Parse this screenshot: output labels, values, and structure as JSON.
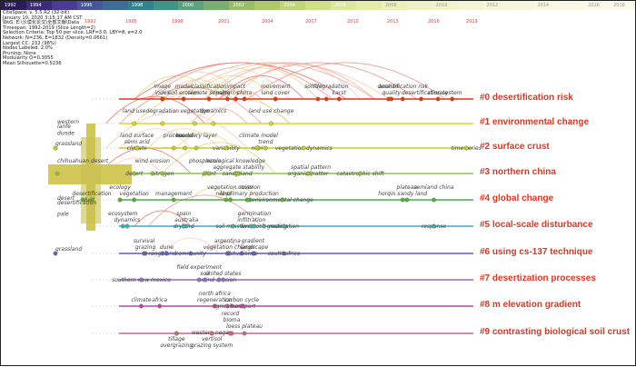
{
  "timebar": [
    {
      "label": "1992",
      "color": "#2b1b5a"
    },
    {
      "label": "1994",
      "color": "#3e2a7a"
    },
    {
      "label": "",
      "color": "#4a3b95"
    },
    {
      "label": "1996",
      "color": "#45569e"
    },
    {
      "label": "",
      "color": "#3c6c9a"
    },
    {
      "label": "1998",
      "color": "#2f8290"
    },
    {
      "label": "",
      "color": "#3d9487"
    },
    {
      "label": "2000",
      "color": "#5aa37d"
    },
    {
      "label": "",
      "color": "#79b071"
    },
    {
      "label": "2002",
      "color": "#98bd66"
    },
    {
      "label": "",
      "color": "#aec96b"
    },
    {
      "label": "2004",
      "color": "#bfd57a"
    },
    {
      "label": "",
      "color": "#cfe08a"
    },
    {
      "label": "2006",
      "color": "#dbe79a"
    },
    {
      "label": "",
      "color": "#e5ecaa"
    },
    {
      "label": "2008",
      "color": "#ecf0b8"
    },
    {
      "label": "",
      "color": "#f0f2c4"
    },
    {
      "label": "2010",
      "color": "#f3f3cc"
    },
    {
      "label": "",
      "color": "#f5f4d2"
    },
    {
      "label": "2012",
      "color": "#f6f5d8"
    },
    {
      "label": "",
      "color": "#f7f6dc"
    },
    {
      "label": "2014",
      "color": "#f8f7e0"
    },
    {
      "label": "",
      "color": "#f9f8e4"
    },
    {
      "label": "2016",
      "color": "#faf9e7"
    },
    {
      "label": "2018",
      "color": "#fbfaea"
    }
  ],
  "info_lines": [
    "CiteSpace, v. 5.5.R2 (32-bit)",
    "January 10, 2020 3:15:17 AM CST",
    "WoS: E:\\沙漠化论文\\全部文献\\Data",
    "Timespan: 1992-2019 (Slice Length=2)",
    "Selection Criteria: Top 50 per slice, LRF=3.0, LBY=8, e=2.0",
    "Network: N=236, E=1832 (Density=0.0661)",
    "Largest CC: 232 (98%)",
    "Nodes Labeled: 2.0%",
    "Pruning: None",
    "Modularity Q=0.3055",
    "Mean Silhouette=0.5236"
  ],
  "years": [
    "1992",
    "1995",
    "1998",
    "2001",
    "2004",
    "2007",
    "2010",
    "2013",
    "2016",
    "2019"
  ],
  "clusters": [
    {
      "label": "#0 desertification risk",
      "color": "#e33322"
    },
    {
      "label": "#1 environmental change",
      "color": "#d8d827"
    },
    {
      "label": "#2 surface crust",
      "color": "#c8c830"
    },
    {
      "label": "#3 northern china",
      "color": "#8bc34a"
    },
    {
      "label": "#4 global change",
      "color": "#4caf50"
    },
    {
      "label": "#5 local-scale disturbance",
      "color": "#3aaad0"
    },
    {
      "label": "#6 using cs-137 technique",
      "color": "#5b5bd6"
    },
    {
      "label": "#7 desertization processes",
      "color": "#8b6bd0"
    },
    {
      "label": "#8 m elevation gradient",
      "color": "#c040b0"
    },
    {
      "label": "#9 contrasting biological soil crust",
      "color": "#d06090"
    }
  ],
  "keywords": [
    {
      "t": "image",
      "c": 0,
      "yr": 1997,
      "r": 0
    },
    {
      "t": "index",
      "c": 0,
      "yr": 1997,
      "r": 1
    },
    {
      "t": "model",
      "c": 0,
      "yr": 1998.5,
      "r": 0
    },
    {
      "t": "classification",
      "c": 0,
      "yr": 2000.3,
      "r": 0
    },
    {
      "t": "impact",
      "c": 0,
      "yr": 2002.2,
      "r": 0
    },
    {
      "t": "soil erosion",
      "c": 0,
      "yr": 1998.5,
      "r": 1
    },
    {
      "t": "remote sensing",
      "c": 0,
      "yr": 2000.3,
      "r": 1
    },
    {
      "t": "patterns",
      "c": 0,
      "yr": 2001.6,
      "r": 1
    },
    {
      "t": "china",
      "c": 0,
      "yr": 2002.8,
      "r": 1
    },
    {
      "t": "movement",
      "c": 0,
      "yr": 2005.0,
      "r": 0
    },
    {
      "t": "land cover",
      "c": 0,
      "yr": 2005.0,
      "r": 1
    },
    {
      "t": "fire",
      "c": 0,
      "yr": 2008.0,
      "r": 0
    },
    {
      "t": "soil degradation",
      "c": 0,
      "yr": 2008.6,
      "r": 0
    },
    {
      "t": "karst",
      "c": 0,
      "yr": 2009.5,
      "r": 1
    },
    {
      "t": "aeolian",
      "c": 0,
      "yr": 2013.0,
      "r": 0
    },
    {
      "t": "desertification risk",
      "c": 0,
      "yr": 2014.0,
      "r": 0
    },
    {
      "t": "quality",
      "c": 0,
      "yr": 2013.2,
      "r": 1
    },
    {
      "t": "desertification",
      "c": 0,
      "yr": 2015.3,
      "r": 1
    },
    {
      "t": "climate",
      "c": 0,
      "yr": 2016.5,
      "r": 1
    },
    {
      "t": "system",
      "c": 0,
      "yr": 2017.5,
      "r": 1
    },
    {
      "t": "land use",
      "c": 1,
      "yr": 1995.0,
      "r": 0
    },
    {
      "t": "degradation",
      "c": 1,
      "yr": 1997.0,
      "r": 0
    },
    {
      "t": "vegetation",
      "c": 1,
      "yr": 1999.3,
      "r": 0
    },
    {
      "t": "dynamics",
      "c": 1,
      "yr": 2000.6,
      "r": 0
    },
    {
      "t": "land use change",
      "c": 1,
      "yr": 2004.7,
      "r": 0
    },
    {
      "t": "grassland",
      "c": 2,
      "yr": 1992,
      "r": -1
    },
    {
      "t": "land surface",
      "c": 2,
      "yr": 1995.2,
      "r": 0
    },
    {
      "t": "semi arid",
      "c": 2,
      "yr": 1995.2,
      "r": 1
    },
    {
      "t": "climate",
      "c": 2,
      "yr": 1995.2,
      "r": 2
    },
    {
      "t": "process",
      "c": 2,
      "yr": 1997.8,
      "r": 0
    },
    {
      "t": "model",
      "c": 2,
      "yr": 1998.6,
      "r": 0
    },
    {
      "t": "boundary layer",
      "c": 2,
      "yr": 1999.4,
      "r": 0
    },
    {
      "t": "climate model",
      "c": 2,
      "yr": 2003.8,
      "r": 0
    },
    {
      "t": "trend",
      "c": 2,
      "yr": 2004.3,
      "r": 1
    },
    {
      "t": "ndvi",
      "c": 2,
      "yr": 2003.7,
      "r": 2
    },
    {
      "t": "variability",
      "c": 2,
      "yr": 2001.5,
      "r": 2
    },
    {
      "t": "vegetation dynamics",
      "c": 2,
      "yr": 2007.0,
      "r": 2
    },
    {
      "t": "time series",
      "c": 2,
      "yr": 2018.5,
      "r": 2
    },
    {
      "t": "wind erosion",
      "c": 3,
      "yr": 1996.3,
      "r": 0
    },
    {
      "t": "phosphorus",
      "c": 3,
      "yr": 2000.0,
      "r": 0
    },
    {
      "t": "ecological knowledge",
      "c": 3,
      "yr": 2002.2,
      "r": 0
    },
    {
      "t": "aggregate stability",
      "c": 3,
      "yr": 2002.4,
      "r": 1
    },
    {
      "t": "spatial pattern",
      "c": 3,
      "yr": 2007.5,
      "r": 1
    },
    {
      "t": "organic matter",
      "c": 3,
      "yr": 2007.3,
      "r": 2
    },
    {
      "t": "catastrophic shift",
      "c": 3,
      "yr": 2011.0,
      "r": 2
    },
    {
      "t": "chihuahuan desert",
      "c": 3,
      "yr": 1992,
      "r": -1
    },
    {
      "t": "desert",
      "c": 3,
      "yr": 1995.0,
      "r": 2
    },
    {
      "t": "nitrogen",
      "c": 3,
      "yr": 1997.0,
      "r": 2
    },
    {
      "t": "plant",
      "c": 3,
      "yr": 2000.3,
      "r": 2
    },
    {
      "t": "sandy land",
      "c": 3,
      "yr": 2002.3,
      "r": 2
    },
    {
      "t": "vegetation cover",
      "c": 4,
      "yr": 2001.8,
      "r": 0
    },
    {
      "t": "mission",
      "c": 4,
      "yr": 2003.2,
      "r": 0
    },
    {
      "t": "land",
      "c": 4,
      "yr": 2001.5,
      "r": 1
    },
    {
      "t": "net primary production",
      "c": 4,
      "yr": 2003.0,
      "r": 1
    },
    {
      "t": "environmental change",
      "c": 4,
      "yr": 2005.5,
      "r": 2
    },
    {
      "t": "plateau",
      "c": 4,
      "yr": 2014.3,
      "r": 0
    },
    {
      "t": "semiarid china",
      "c": 4,
      "yr": 2016.2,
      "r": 0
    },
    {
      "t": "horqin sandy land",
      "c": 4,
      "yr": 2014.0,
      "r": 1
    },
    {
      "t": "ecology",
      "c": 4,
      "yr": 1994.0,
      "r": 0
    },
    {
      "t": "vegetation",
      "c": 4,
      "yr": 1995.0,
      "r": 1
    },
    {
      "t": "management",
      "c": 4,
      "yr": 1997.8,
      "r": 1
    },
    {
      "t": "desertification",
      "c": 4,
      "yr": 1992,
      "r": 1
    },
    {
      "t": "dust",
      "c": 4,
      "yr": 1992,
      "r": -1
    },
    {
      "t": "spain",
      "c": 5,
      "yr": 1998.5,
      "r": 0
    },
    {
      "t": "australia",
      "c": 5,
      "yr": 1998.7,
      "r": 1
    },
    {
      "t": "germination",
      "c": 5,
      "yr": 2003.5,
      "r": 0
    },
    {
      "t": "infiltration",
      "c": 5,
      "yr": 2003.3,
      "r": 1
    },
    {
      "t": "dryland",
      "c": 5,
      "yr": 1998.5,
      "r": 2
    },
    {
      "t": "soil moisture",
      "c": 5,
      "yr": 2002.0,
      "r": 2
    },
    {
      "t": "livestock grazing",
      "c": 5,
      "yr": 2004.2,
      "r": 2
    },
    {
      "t": "restoration",
      "c": 5,
      "yr": 2005.6,
      "r": 2
    },
    {
      "t": "response",
      "c": 5,
      "yr": 2016.2,
      "r": 2
    },
    {
      "t": "ecosystem",
      "c": 5,
      "yr": 1994.2,
      "r": 0
    },
    {
      "t": "dynamics",
      "c": 5,
      "yr": 1994.5,
      "r": 1
    },
    {
      "t": "survival",
      "c": 6,
      "yr": 1995.7,
      "r": 0
    },
    {
      "t": "grazing",
      "c": 6,
      "yr": 1995.8,
      "r": 1
    },
    {
      "t": "dune",
      "c": 6,
      "yr": 1997.3,
      "r": 1
    },
    {
      "t": "rangeland",
      "c": 6,
      "yr": 1997.0,
      "r": 2
    },
    {
      "t": "community",
      "c": 6,
      "yr": 1999.0,
      "r": 2
    },
    {
      "t": "argentina",
      "c": 6,
      "yr": 2001.6,
      "r": 0
    },
    {
      "t": "gradient",
      "c": 6,
      "yr": 2003.4,
      "r": 0
    },
    {
      "t": "vegetation change",
      "c": 6,
      "yr": 2001.7,
      "r": 1
    },
    {
      "t": "landscape",
      "c": 6,
      "yr": 2003.5,
      "r": 1
    },
    {
      "t": "disturbance",
      "c": 6,
      "yr": 2002.6,
      "r": 2
    },
    {
      "t": "south africa",
      "c": 6,
      "yr": 2005.6,
      "r": 2
    },
    {
      "t": "grassland",
      "c": 6,
      "yr": 1992,
      "r": -1
    },
    {
      "t": "field experiment",
      "c": 7,
      "yr": 1999.6,
      "r": 0
    },
    {
      "t": "soil",
      "c": 7,
      "yr": 2000.0,
      "r": 1
    },
    {
      "t": "united states",
      "c": 7,
      "yr": 2001.3,
      "r": 1
    },
    {
      "t": "wind erosion",
      "c": 7,
      "yr": 2001.0,
      "r": 2
    },
    {
      "t": "southern new mexico",
      "c": 7,
      "yr": 1995.5,
      "r": 2
    },
    {
      "t": "north africa",
      "c": 8,
      "yr": 2000.7,
      "r": 0
    },
    {
      "t": "regeneration",
      "c": 8,
      "yr": 2000.7,
      "r": 1
    },
    {
      "t": "carbon cycle",
      "c": 8,
      "yr": 2002.6,
      "r": 1
    },
    {
      "t": "agriculture",
      "c": 8,
      "yr": 2001.6,
      "r": 2
    },
    {
      "t": "transport",
      "c": 8,
      "yr": 2002.7,
      "r": 2
    },
    {
      "t": "climate",
      "c": 8,
      "yr": 1995.5,
      "r": 1
    },
    {
      "t": "africa",
      "c": 8,
      "yr": 1996.8,
      "r": 1
    },
    {
      "t": "record",
      "c": 9,
      "yr": 2001.8,
      "r": 0
    },
    {
      "t": "bioma",
      "c": 9,
      "yr": 2001.9,
      "r": 1
    },
    {
      "t": "loess plateau",
      "c": 9,
      "yr": 2002.8,
      "r": 2
    },
    {
      "t": "western negev",
      "c": 9,
      "yr": 2000.5,
      "r": 3
    },
    {
      "t": "vertisol",
      "c": 9,
      "yr": 2000.5,
      "r": 4
    },
    {
      "t": "tillage",
      "c": 9,
      "yr": 1998.0,
      "r": 4
    },
    {
      "t": "overgrazing",
      "c": 9,
      "yr": 1998.0,
      "r": 5
    },
    {
      "t": "grazing system",
      "c": 9,
      "yr": 2000.5,
      "r": 5
    }
  ],
  "left_labels": [
    {
      "t": "western",
      "row": 1
    },
    {
      "t": "lanfe",
      "row": 1.2
    },
    {
      "t": "dunde",
      "row": 1.5
    },
    {
      "t": "desert",
      "row": 4.0
    },
    {
      "t": "desertification",
      "row": 4.2
    },
    {
      "t": "pale",
      "row": 4.7
    }
  ]
}
